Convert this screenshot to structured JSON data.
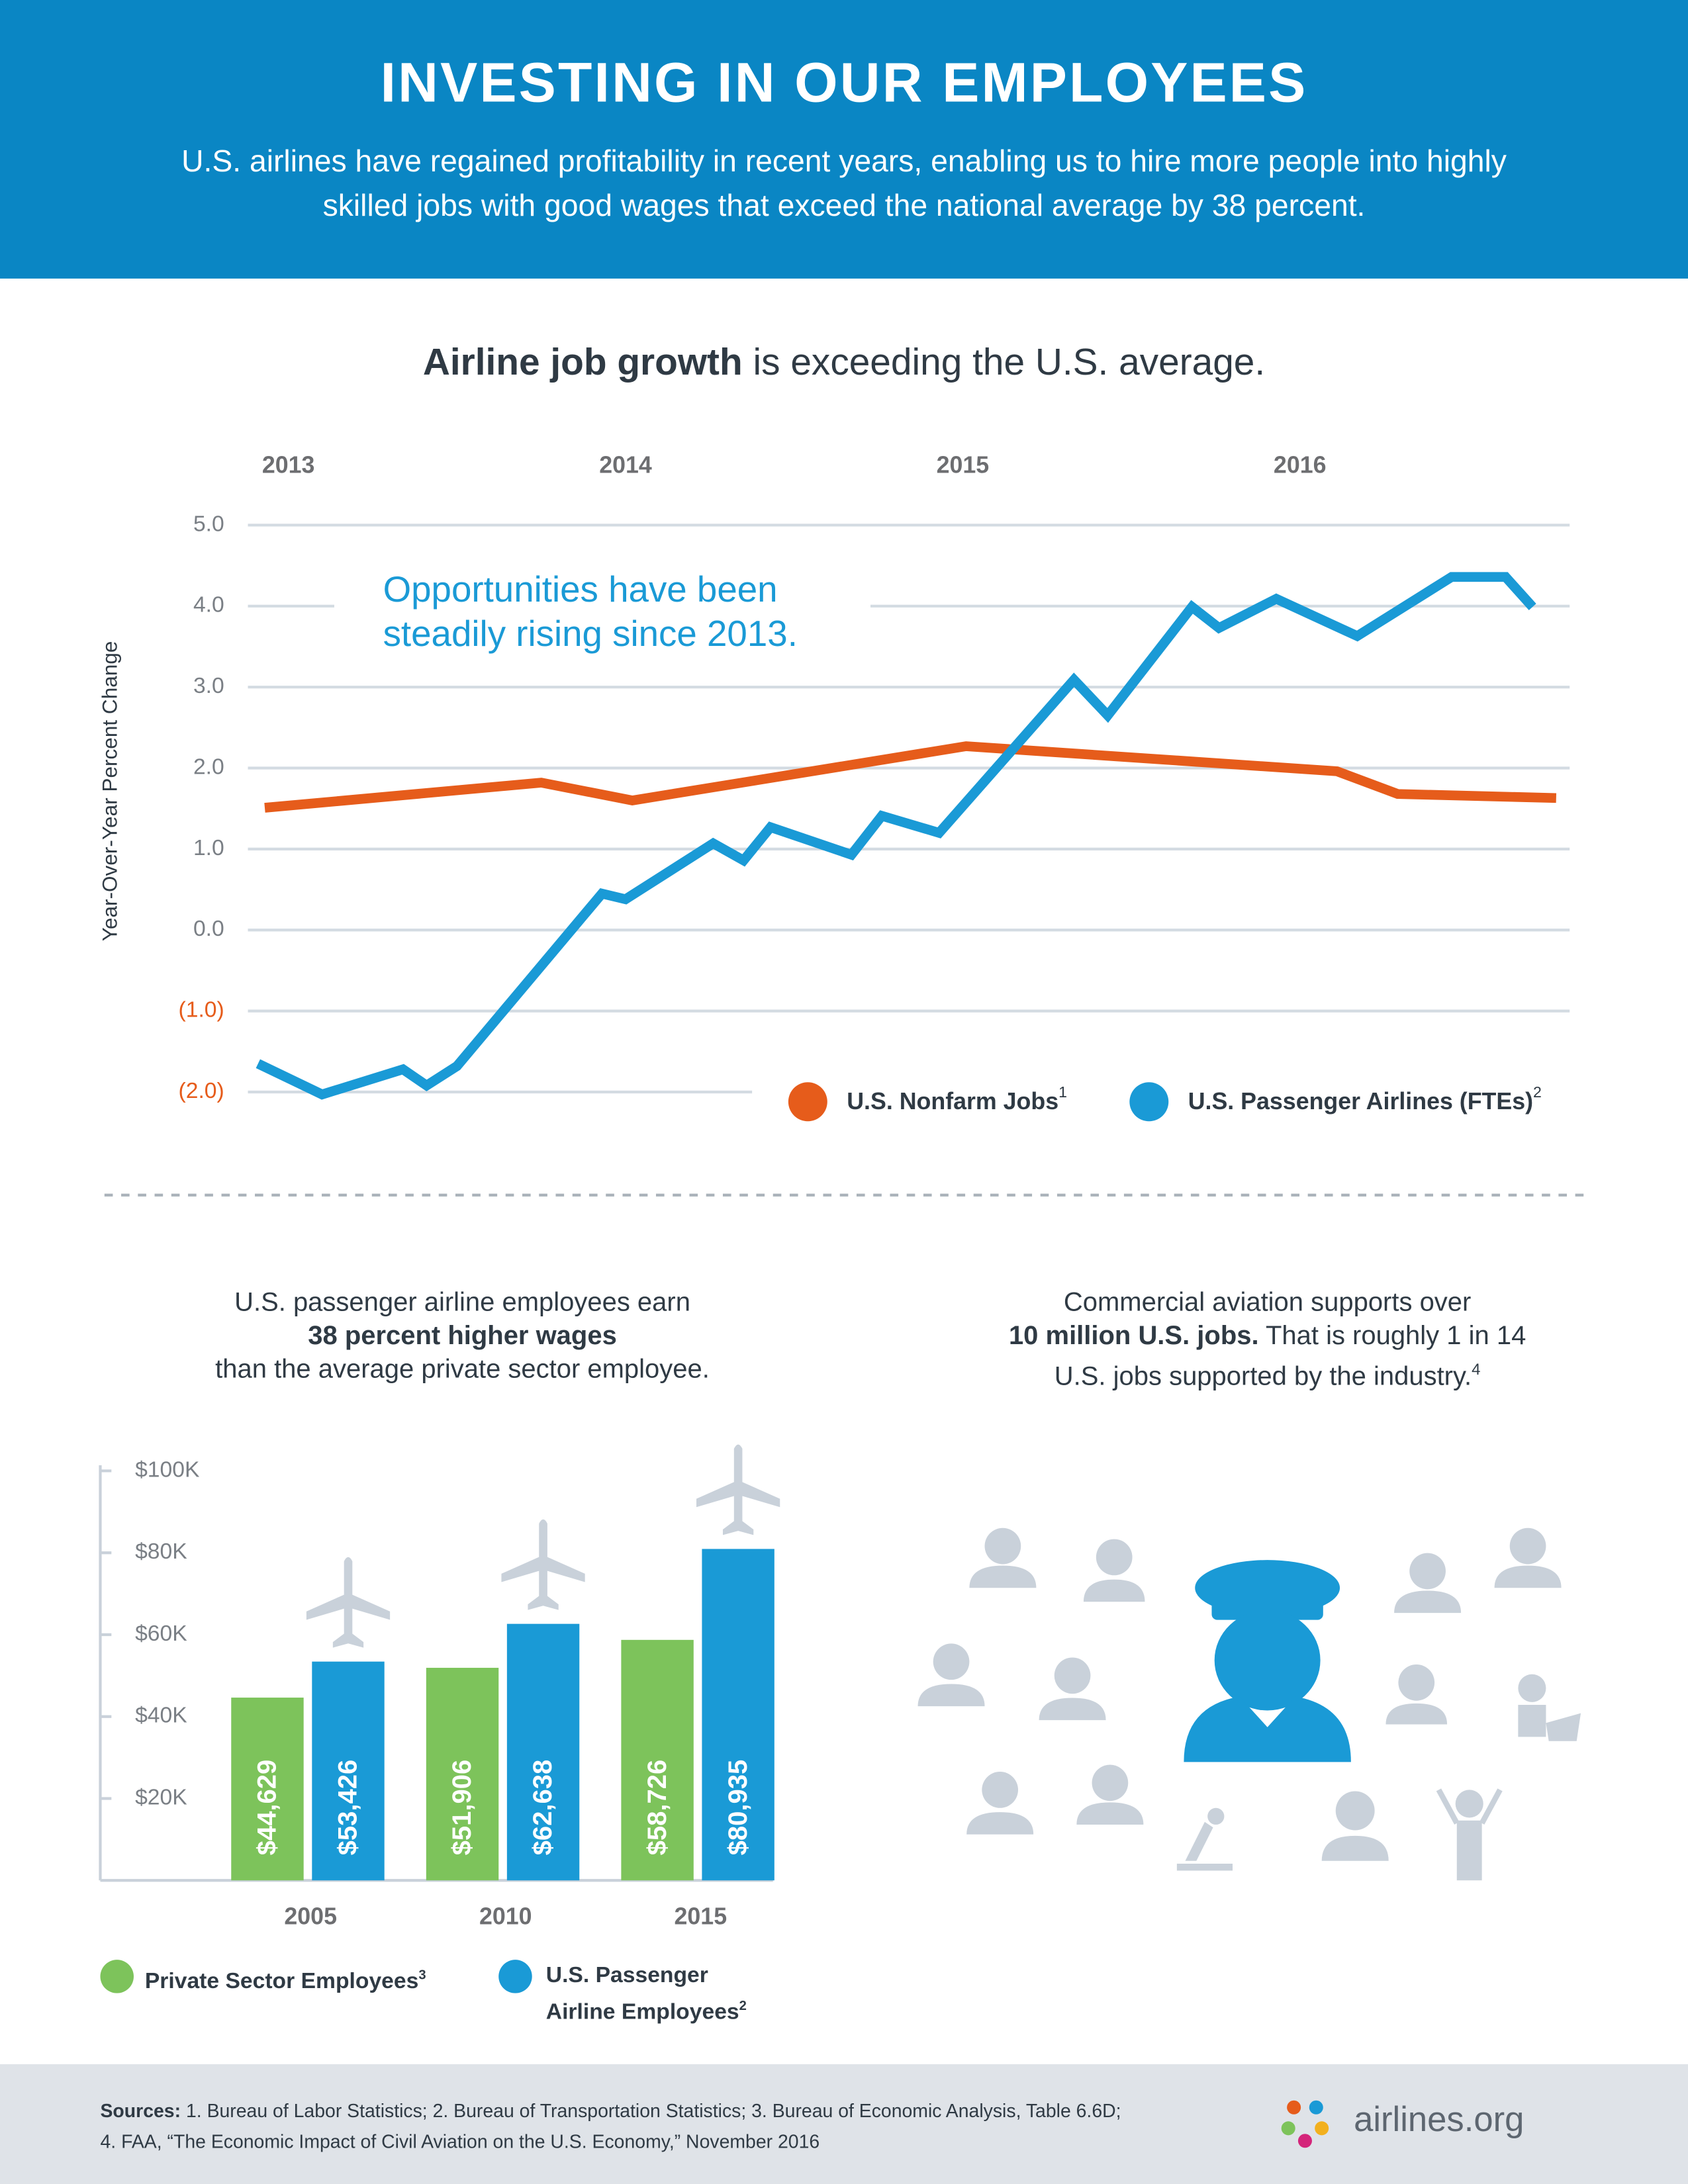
{
  "header": {
    "title": "INVESTING IN OUR EMPLOYEES",
    "subtitle": "U.S. airlines have regained profitability in recent years, enabling us to hire more people into highly skilled jobs with good wages that exceed the national average by 38 percent."
  },
  "chart_data": [
    {
      "type": "line",
      "title_bold": "Airline job growth",
      "title": "is exceeding the U.S. average.",
      "y_label": "Year-Over-Year Percent Change",
      "annotation": [
        "Opportunities have been",
        "steadily rising since 2013."
      ],
      "xlim": [
        2012.88,
        2016.8
      ],
      "xticks": [
        2013,
        2014,
        2015,
        2016
      ],
      "ylim": [
        -2,
        5
      ],
      "yticks": [
        {
          "value": 5,
          "label": "5.0"
        },
        {
          "value": 4,
          "label": "4.0"
        },
        {
          "value": 3,
          "label": "3.0"
        },
        {
          "value": 2,
          "label": "2.0"
        },
        {
          "value": 1,
          "label": "1.0"
        },
        {
          "value": 0,
          "label": "0.0"
        },
        {
          "value": -1,
          "label": "(1.0)"
        },
        {
          "value": -2,
          "label": "(2.0)"
        }
      ],
      "grid": true,
      "negative_label_color": "#e65c1b",
      "legend": "bottom-right",
      "series": [
        {
          "name": "U.S. Nonfarm Jobs",
          "note": "1",
          "color": "#e65c1b",
          "x": [
            2012.93,
            2013.75,
            2014.02,
            2015.01,
            2016.11,
            2016.29,
            2016.76
          ],
          "values": [
            1.51,
            1.82,
            1.6,
            2.27,
            1.96,
            1.68,
            1.63
          ]
        },
        {
          "name": "U.S. Passenger Airlines (FTEs)",
          "note": "2",
          "color": "#1a9ad6",
          "x": [
            2012.91,
            2013.1,
            2013.34,
            2013.41,
            2013.5,
            2013.93,
            2014.0,
            2014.26,
            2014.35,
            2014.43,
            2014.67,
            2014.76,
            2014.93,
            2015.33,
            2015.43,
            2015.68,
            2015.76,
            2015.93,
            2016.17,
            2016.45,
            2016.61,
            2016.69
          ],
          "values": [
            -1.65,
            -2.03,
            -1.72,
            -1.92,
            -1.68,
            0.45,
            0.38,
            1.07,
            0.86,
            1.27,
            0.93,
            1.41,
            1.2,
            3.09,
            2.65,
            3.99,
            3.73,
            4.09,
            3.63,
            4.36,
            4.36,
            3.99
          ]
        }
      ]
    },
    {
      "type": "bar",
      "title_lines": [
        "U.S. passenger airline employees earn",
        "38 percent higher wages",
        "than the average private sector employee."
      ],
      "categories": [
        "2005",
        "2010",
        "2015"
      ],
      "ylim": [
        0,
        100000
      ],
      "yticks": [
        {
          "value": 20000,
          "label": "$20K"
        },
        {
          "value": 40000,
          "label": "$40K"
        },
        {
          "value": 60000,
          "label": "$60K"
        },
        {
          "value": 80000,
          "label": "$80K"
        },
        {
          "value": 100000,
          "label": "$100K"
        }
      ],
      "series": [
        {
          "name": "Private Sector Employees",
          "note": "3",
          "color": "#7dc35b",
          "values": [
            44629,
            51906,
            58726
          ],
          "value_labels": [
            "$44,629",
            "$51,906",
            "$58,726"
          ]
        },
        {
          "name": "U.S. Passenger Airline Employees",
          "note": "2",
          "color": "#1a9ad6",
          "values": [
            53426,
            62638,
            80935
          ],
          "value_labels": [
            "$53,426",
            "$62,638",
            "$80,935"
          ]
        }
      ]
    }
  ],
  "jobs_panel": {
    "text_1": "Commercial aviation supports over",
    "text_bold": "10 million U.S. jobs.",
    "text_2": "That is roughly 1 in 14",
    "text_3": "U.S. jobs supported by the industry.",
    "note": "4"
  },
  "footer": {
    "label": "Sources:",
    "line_1": "1. Bureau of Labor Statistics; 2. Bureau of Transportation Statistics; 3. Bureau of Economic Analysis, Table 6.6D;",
    "line_2": "4. FAA, “The Economic Impact of Civil Aviation on the U.S. Economy,” November 2016",
    "logo": "airlines.org"
  }
}
